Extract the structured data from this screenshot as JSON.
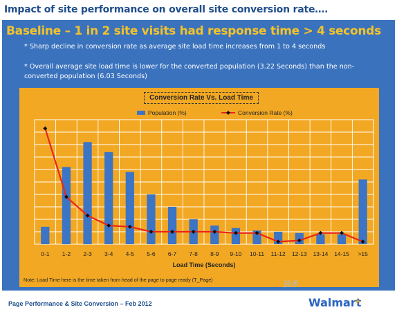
{
  "slide": {
    "title": "Impact of site performance on overall site conversion rate….",
    "headline": "Baseline – 1 in 2 site visits had response time > 4 seconds",
    "bullets": [
      "* Sharp decline in conversion rate as average site load time increases from 1 to 4 seconds",
      "* Overall average site load time is lower for the converted population (3.22 Seconds) than the non-converted population (6.03 Seconds)"
    ],
    "note": "Note: Load Time here is the time taken from head of the page to page ready (T_Page)",
    "footer": "Page Performance & Site Conversion – Feb 2012",
    "brand": "Walmart",
    "brand_mark": "✳",
    "watermark": "技术"
  },
  "colors": {
    "panel": "#3a72bd",
    "chart_bg": "#f2a823",
    "bar": "#3c74c6",
    "line": "#e8261a",
    "marker": "#111111",
    "title_text": "#1f4e8c",
    "headline_text": "#f3c32a"
  },
  "chart_data": {
    "type": "bar",
    "title": "Conversion Rate Vs. Load Time",
    "xlabel": "Load Time (Seconds)",
    "ylabel": "",
    "categories": [
      "0-1",
      "1-2",
      "2-3",
      "3-4",
      "4-5",
      "5-6",
      "6-7",
      "7-8",
      "8-9",
      "9-10",
      "10-11",
      "11-12",
      "12-13",
      "13-14",
      "14-15",
      ">15"
    ],
    "ylim": [
      0,
      100
    ],
    "grid": true,
    "legend": "top",
    "series": [
      {
        "name": "Population (%)",
        "kind": "bar",
        "values": [
          14,
          62,
          82,
          74,
          58,
          40,
          30,
          20,
          15,
          13,
          11,
          10,
          9,
          8,
          8,
          52
        ]
      },
      {
        "name": "Conversion Rate (%)",
        "kind": "line",
        "values": [
          93,
          38,
          23,
          15,
          14,
          10,
          10,
          10,
          10,
          9,
          9,
          2,
          3,
          9,
          9,
          2
        ]
      }
    ]
  }
}
